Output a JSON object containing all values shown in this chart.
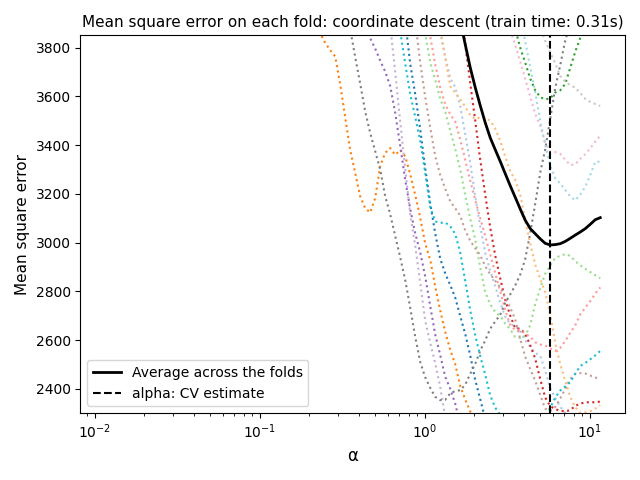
{
  "title": "Mean square error on each fold: coordinate descent (train time: 0.31s)",
  "xlabel": "α",
  "ylabel": "Mean square error",
  "legend_loc": "lower left",
  "avg_color": "black",
  "avg_lw": 2.0,
  "ylim": [
    2300,
    3850
  ],
  "figsize": [
    6.4,
    4.8
  ],
  "dpi": 100
}
